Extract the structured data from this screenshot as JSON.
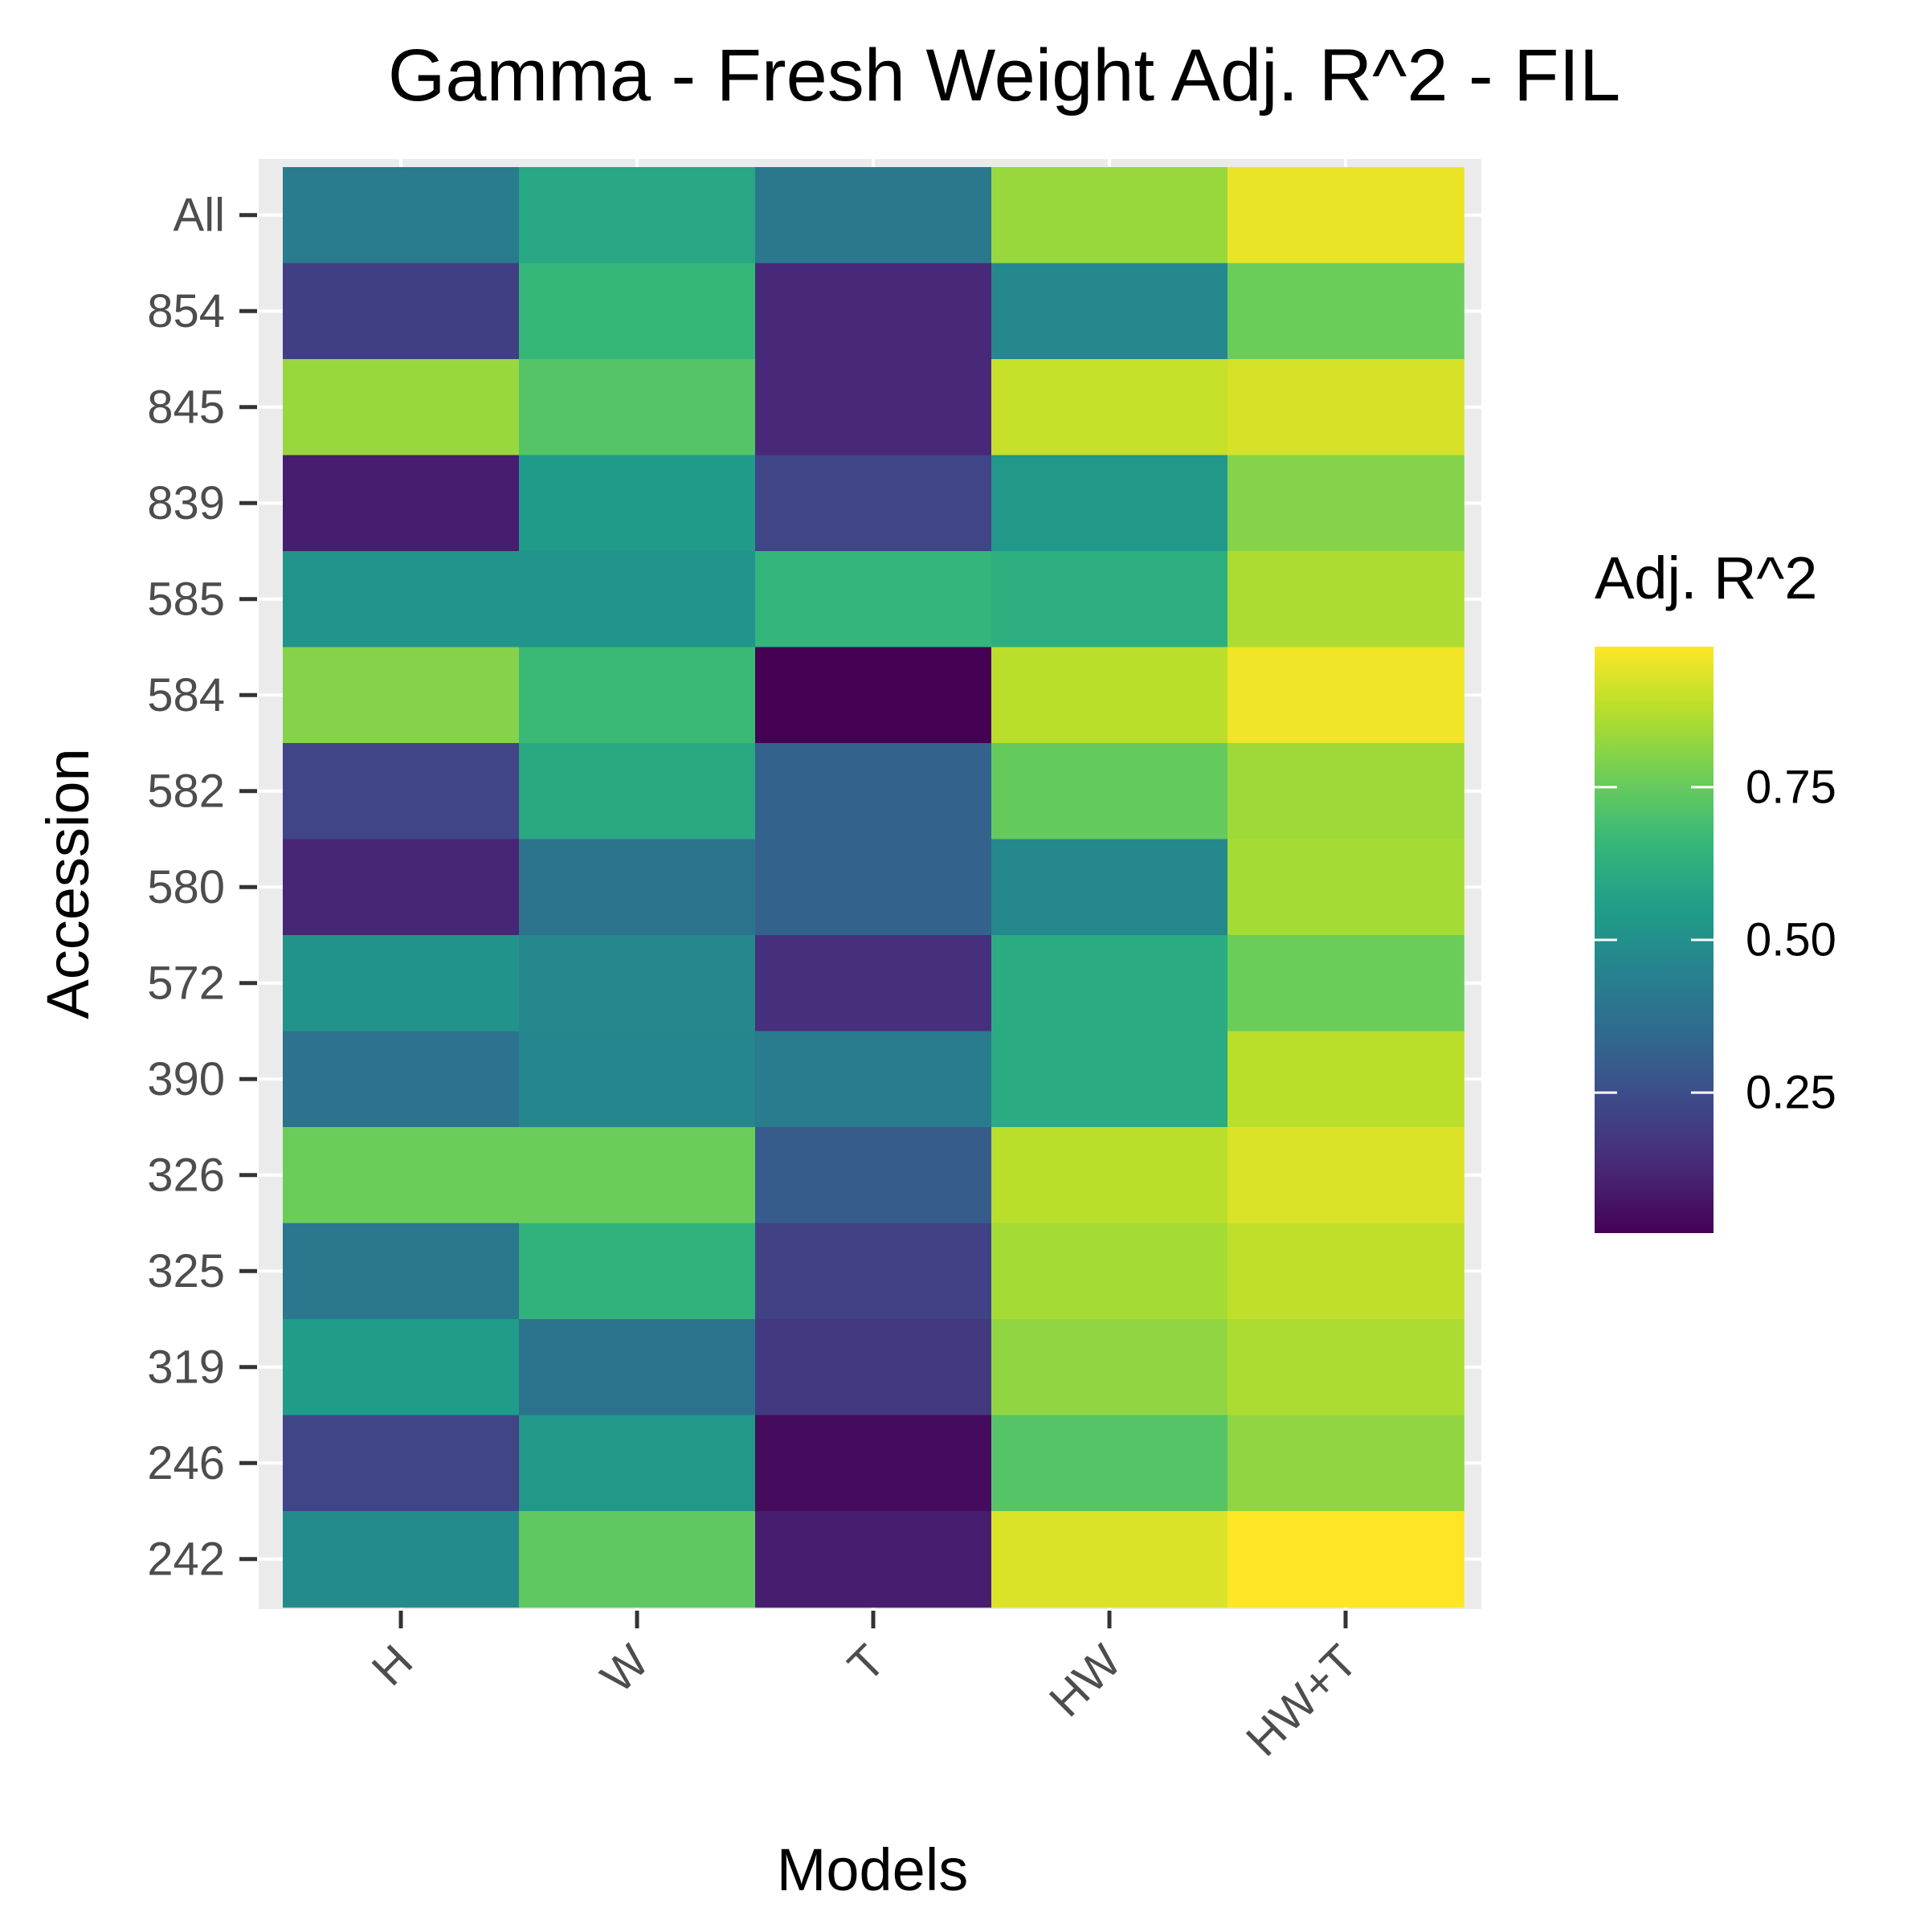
{
  "chart_data": {
    "type": "heatmap",
    "title": "Gamma - Fresh Weight Adj. R^2 - FIL",
    "xlabel": "Models",
    "ylabel": "Accession",
    "x_categories": [
      "H",
      "W",
      "T",
      "HW",
      "HW+T"
    ],
    "y_categories": [
      "All",
      "854",
      "845",
      "839",
      "585",
      "584",
      "582",
      "580",
      "572",
      "390",
      "326",
      "325",
      "319",
      "246",
      "242"
    ],
    "values": [
      [
        0.42,
        0.59,
        0.4,
        0.83,
        0.95
      ],
      [
        0.2,
        0.66,
        0.13,
        0.47,
        0.76
      ],
      [
        0.83,
        0.72,
        0.13,
        0.9,
        0.92
      ],
      [
        0.1,
        0.54,
        0.22,
        0.53,
        0.8
      ],
      [
        0.52,
        0.52,
        0.65,
        0.62,
        0.86
      ],
      [
        0.8,
        0.67,
        0.02,
        0.88,
        0.96
      ],
      [
        0.22,
        0.6,
        0.32,
        0.75,
        0.84
      ],
      [
        0.12,
        0.39,
        0.32,
        0.47,
        0.85
      ],
      [
        0.51,
        0.47,
        0.15,
        0.61,
        0.76
      ],
      [
        0.38,
        0.46,
        0.42,
        0.61,
        0.88
      ],
      [
        0.76,
        0.76,
        0.3,
        0.88,
        0.93
      ],
      [
        0.4,
        0.64,
        0.21,
        0.85,
        0.89
      ],
      [
        0.55,
        0.39,
        0.18,
        0.82,
        0.86
      ],
      [
        0.22,
        0.53,
        0.05,
        0.72,
        0.82
      ],
      [
        0.48,
        0.74,
        0.1,
        0.93,
        0.98
      ]
    ],
    "value_range": [
      0.02,
      0.98
    ],
    "colorscale": "viridis",
    "legend": {
      "title": "Adj. R^2",
      "ticks": [
        0.25,
        0.5,
        0.75
      ],
      "tick_labels": [
        "0.25",
        "0.50",
        "0.75"
      ],
      "position": "right"
    },
    "panel_background": "#ebebeb",
    "gridlines": true
  }
}
